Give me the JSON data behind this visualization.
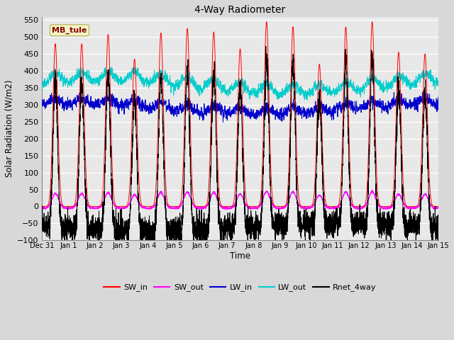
{
  "title": "4-Way Radiometer",
  "xlabel": "Time",
  "ylabel": "Solar Radiation (W/m2)",
  "ylim": [
    -100,
    560
  ],
  "yticks": [
    -100,
    -50,
    0,
    50,
    100,
    150,
    200,
    250,
    300,
    350,
    400,
    450,
    500,
    550
  ],
  "colors": {
    "SW_in": "#ff0000",
    "SW_out": "#ff00ff",
    "LW_in": "#0000cc",
    "LW_out": "#00cccc",
    "Rnet_4way": "#000000"
  },
  "annotation": "MB_tule",
  "annotation_color": "#8b0000",
  "annotation_bg": "#f5f5c8",
  "plot_bg": "#e8e8e8",
  "grid_color": "#ffffff",
  "tick_labels": [
    "Dec 31",
    "Jan 1",
    "Jan 2",
    "Jan 3",
    "Jan 4",
    "Jan 5",
    "Jan 6",
    "Jan 7",
    "Jan 8",
    "Jan 9",
    "Jan 10",
    "Jan 11",
    "Jan 12",
    "Jan 13",
    "Jan 14",
    "Jan 15"
  ],
  "daily_peaks_SW": [
    480,
    480,
    508,
    435,
    512,
    525,
    515,
    465,
    545,
    530,
    420,
    530,
    545,
    455,
    450
  ],
  "figsize": [
    6.4,
    4.8
  ],
  "dpi": 100
}
